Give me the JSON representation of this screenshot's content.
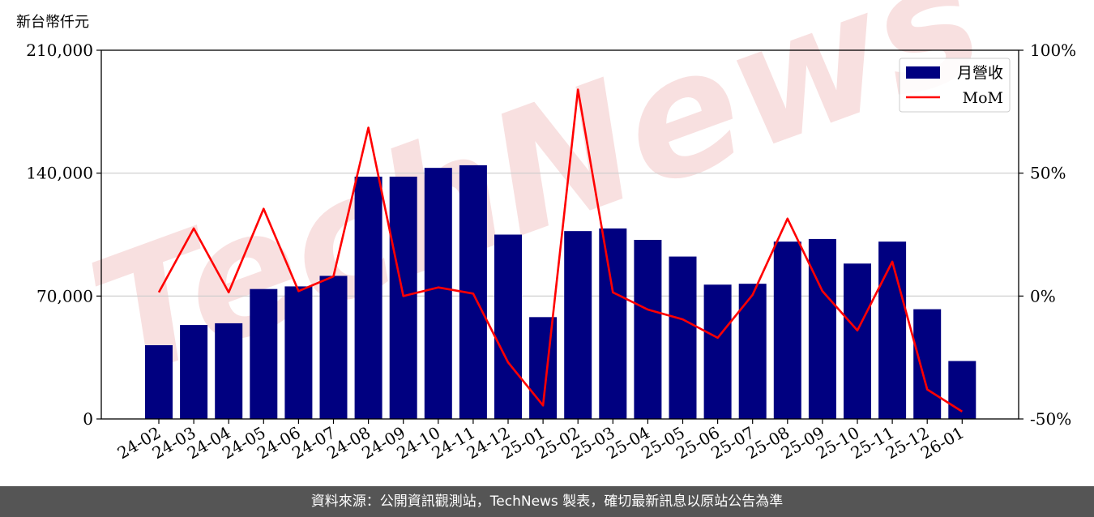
{
  "footer": {
    "source_text": "資料來源：公開資訊觀測站，TechNews 製表，確切最新訊息以原站公告為準"
  },
  "watermark": {
    "text": "TechNews",
    "color": "#f3cccc"
  },
  "chart_data": {
    "type": "bar",
    "ylabel": "新台幣仟元",
    "categories": [
      "24-02",
      "24-03",
      "24-04",
      "24-05",
      "24-06",
      "24-07",
      "24-08",
      "24-09",
      "24-10",
      "24-11",
      "24-12",
      "25-01",
      "25-02",
      "25-03",
      "25-04",
      "25-05",
      "25-06",
      "25-07",
      "25-08",
      "25-09",
      "25-10",
      "25-11",
      "25-12",
      "26-01"
    ],
    "series": [
      {
        "name": "月營收",
        "type": "bar",
        "axis": "left",
        "color": "#000080",
        "values": [
          42000,
          53500,
          54500,
          74000,
          75500,
          81500,
          138000,
          138000,
          143000,
          144500,
          105000,
          58000,
          107000,
          108500,
          102000,
          92500,
          76500,
          77000,
          101000,
          102500,
          88500,
          101000,
          62500,
          33000
        ]
      },
      {
        "name": "MoM",
        "type": "line",
        "axis": "right",
        "color": "#ff0000",
        "values": [
          1.5,
          27.5,
          1.5,
          35.5,
          2,
          8,
          68.5,
          0,
          3.5,
          1,
          -27,
          -44.5,
          84,
          1.5,
          -5.5,
          -9.5,
          -17,
          0.5,
          31.5,
          2,
          -14,
          14,
          -38,
          -47
        ]
      }
    ],
    "ylim_left": [
      0,
      210000
    ],
    "yticks_left": [
      0,
      70000,
      140000,
      210000
    ],
    "ytick_labels_left": [
      "0",
      "70,000",
      "140,000",
      "210,000"
    ],
    "ylim_right": [
      -50,
      100
    ],
    "yticks_right": [
      -50,
      0,
      50,
      100
    ],
    "ytick_labels_right": [
      "-50%",
      "0%",
      "50%",
      "100%"
    ],
    "grid": "horizontal",
    "legend_position": "top-right"
  }
}
